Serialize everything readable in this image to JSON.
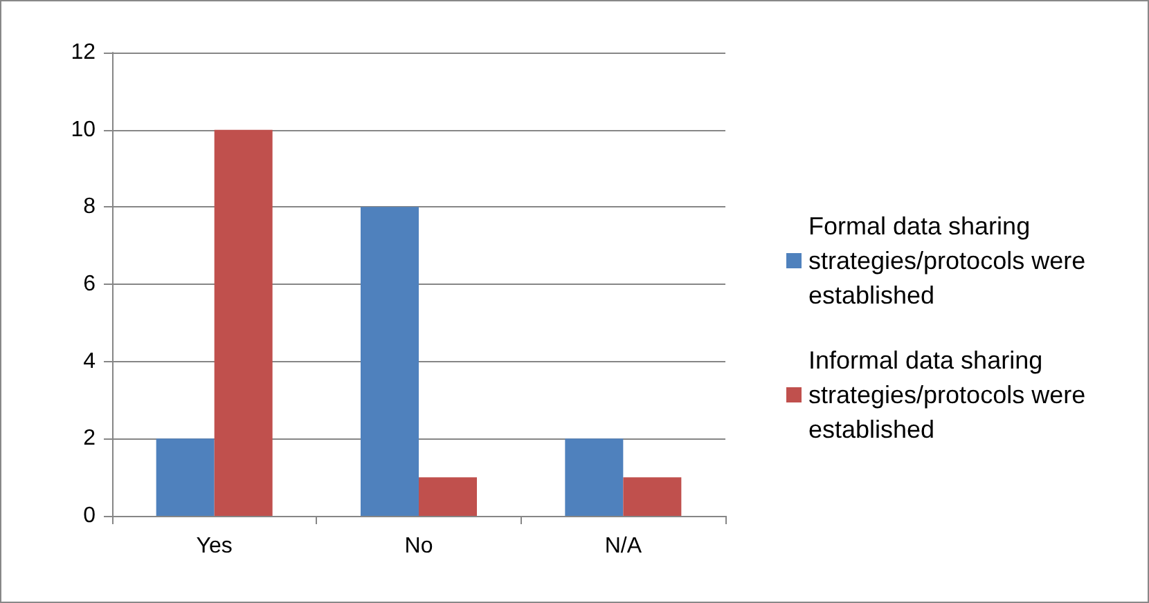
{
  "chart_data": {
    "type": "bar",
    "categories": [
      "Yes",
      "No",
      "N/A"
    ],
    "series": [
      {
        "name": "Formal data sharing strategies/protocols were established",
        "color": "#4f81bd",
        "values": [
          2,
          8,
          2
        ]
      },
      {
        "name": "Informal data sharing strategies/protocols were established",
        "color": "#c0504d",
        "values": [
          10,
          1,
          1
        ]
      }
    ],
    "ylim": [
      0,
      12
    ],
    "yticks": [
      0,
      2,
      4,
      6,
      8,
      10,
      12
    ],
    "grid": "y",
    "legend": "right"
  }
}
